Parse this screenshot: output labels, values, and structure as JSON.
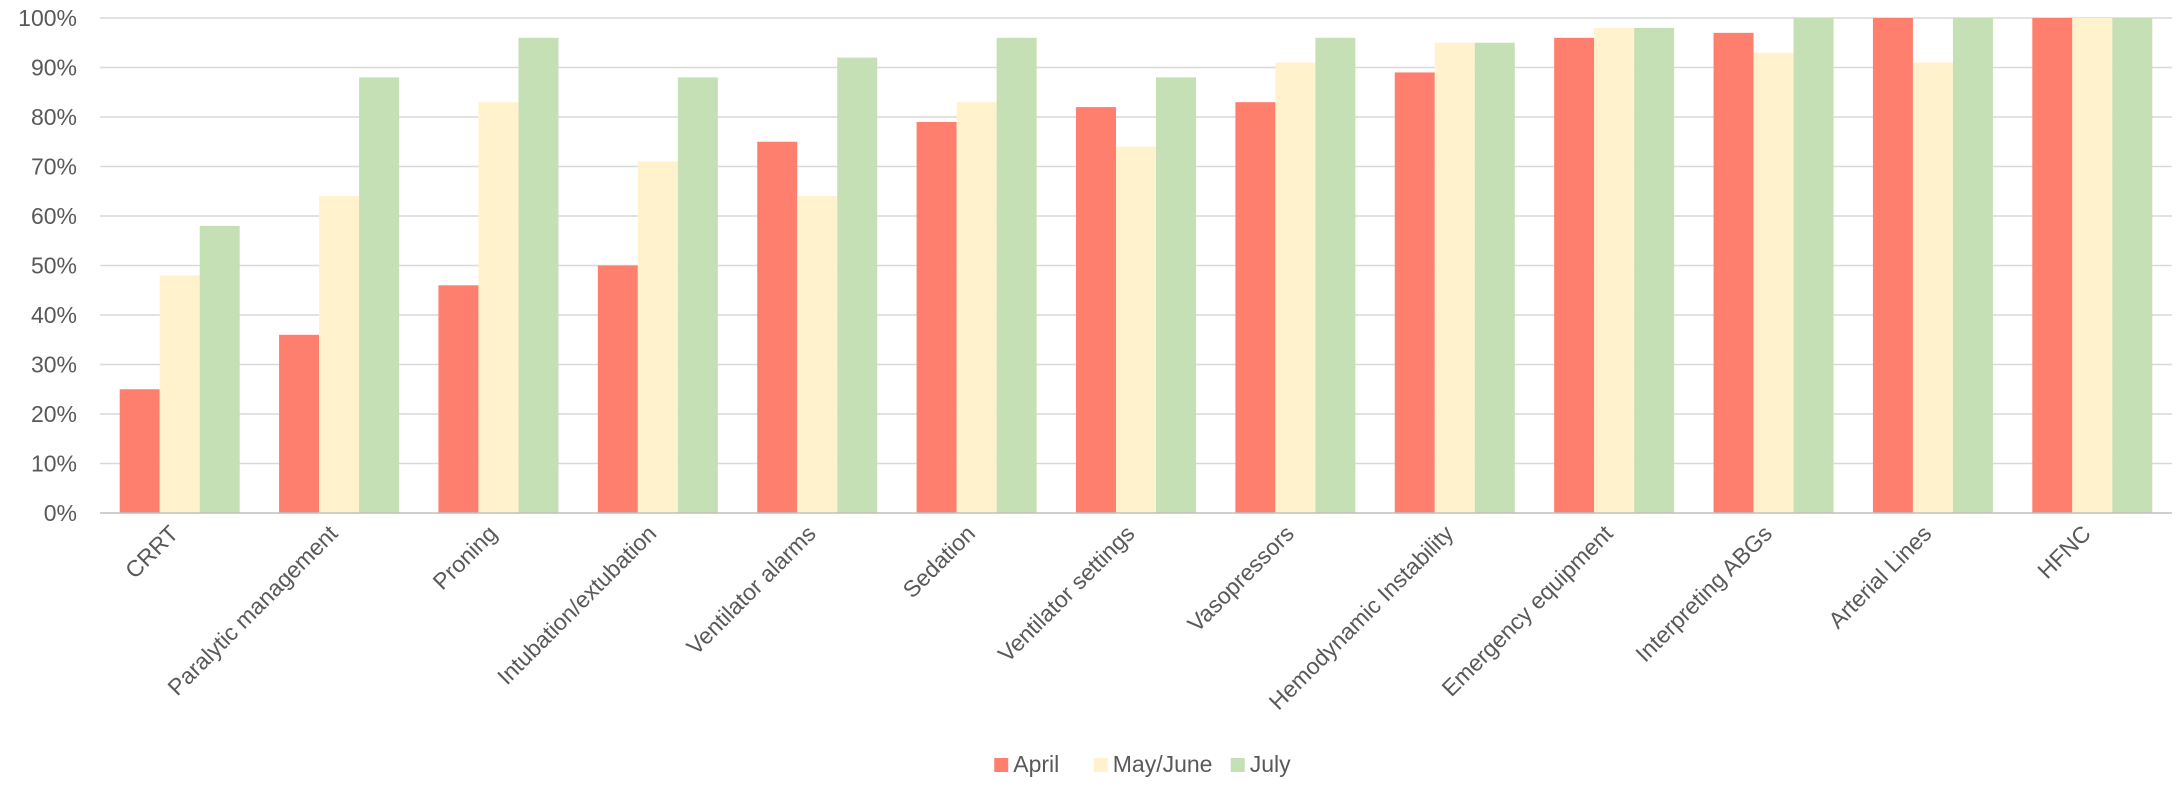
{
  "chart_data": {
    "type": "bar",
    "categories": [
      "CRRT",
      "Paralytic management",
      "Proning",
      "Intubation/extubation",
      "Ventilator alarms",
      "Sedation",
      "Ventilator settings",
      "Vasopressors",
      "Hemodynamic Instability",
      "Emergency equipment",
      "Interpreting ABGs",
      "Arterial Lines",
      "HFNC"
    ],
    "series": [
      {
        "name": "April",
        "color": "#ff7f6e",
        "values": [
          25,
          36,
          46,
          50,
          75,
          79,
          82,
          83,
          89,
          96,
          97,
          100,
          100
        ]
      },
      {
        "name": "May/June",
        "color": "#fff2cc",
        "values": [
          48,
          64,
          83,
          71,
          64,
          83,
          74,
          91,
          95,
          98,
          93,
          91,
          100
        ]
      },
      {
        "name": "July",
        "color": "#c5e0b4",
        "values": [
          58,
          88,
          96,
          88,
          92,
          96,
          88,
          96,
          95,
          98,
          100,
          100,
          100
        ]
      }
    ],
    "yticks": [
      "0%",
      "10%",
      "20%",
      "30%",
      "40%",
      "50%",
      "60%",
      "70%",
      "80%",
      "90%",
      "100%"
    ],
    "ylim": [
      0,
      100
    ],
    "title": "",
    "xlabel": "",
    "ylabel": "",
    "grid": true,
    "legend": "bottom-center"
  }
}
